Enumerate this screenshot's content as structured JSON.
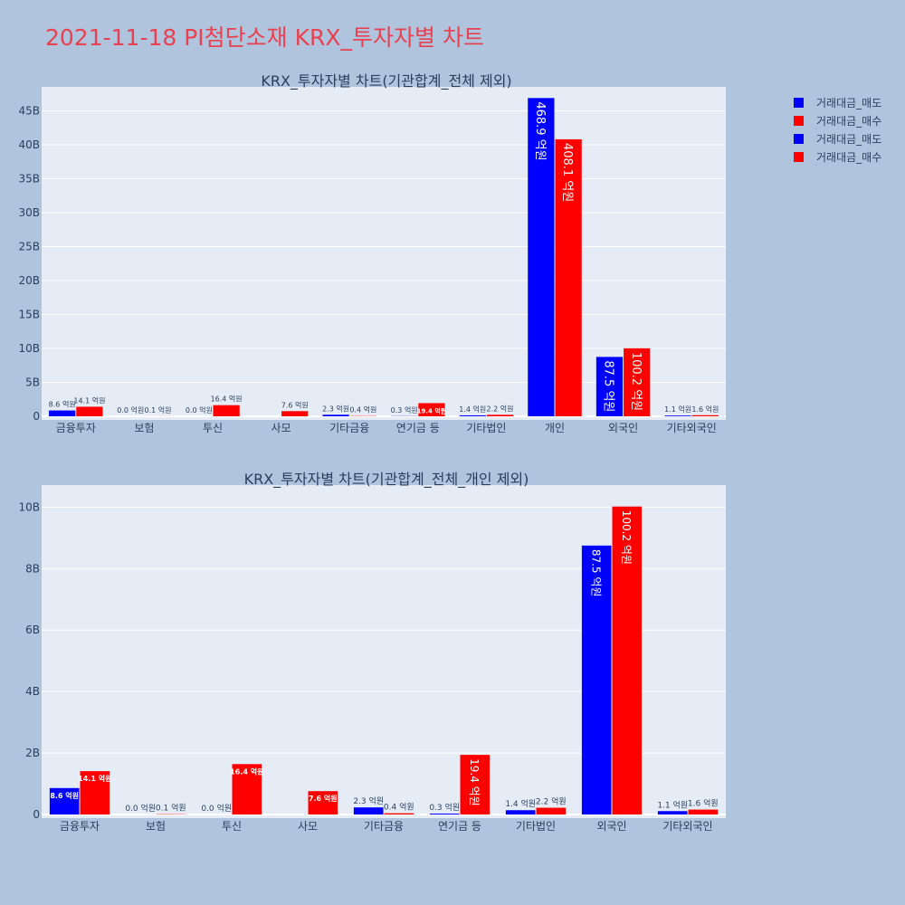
{
  "title": "2021-11-18 PI첨단소재 KRX_투자자별 차트",
  "colors": {
    "sell": "#0000ff",
    "buy": "#ff0000",
    "plot_bg": "#e5ecf6",
    "page_bg": "#b0c4de"
  },
  "legend": [
    "거래대금_매도",
    "거래대금_매수",
    "거래대금_매도",
    "거래대금_매수"
  ],
  "chart_data": [
    {
      "type": "bar",
      "title": "KRX_투자자별 차트(기관합계_전체 제외)",
      "categories": [
        "금융투자",
        "보험",
        "투신",
        "사모",
        "기타금융",
        "연기금 등",
        "기타법인",
        "개인",
        "외국인",
        "기타외국인"
      ],
      "ylim": [
        0,
        48
      ],
      "yticks": [
        0,
        5,
        10,
        15,
        20,
        25,
        30,
        35,
        40,
        45
      ],
      "ytick_labels": [
        "0",
        "5B",
        "10B",
        "15B",
        "20B",
        "25B",
        "30B",
        "35B",
        "40B",
        "45B"
      ],
      "series": [
        {
          "name": "거래대금_매도",
          "color": "#0000ff",
          "values": [
            0.86,
            0.0,
            0.0,
            null,
            0.23,
            0.03,
            0.14,
            46.89,
            8.75,
            0.11
          ],
          "labels": [
            "8.6 억원",
            "0.0 억원",
            "0.0 억원",
            "",
            "2.3 억원",
            "0.3 억원",
            "1.4 억원",
            "468.9 억원",
            "87.5 억원",
            "1.1 억원"
          ]
        },
        {
          "name": "거래대금_매수",
          "color": "#ff0000",
          "values": [
            1.41,
            0.01,
            1.64,
            0.76,
            0.04,
            1.94,
            0.22,
            40.81,
            10.02,
            0.16
          ],
          "labels": [
            "14.1 억원",
            "0.1 억원",
            "16.4 억원",
            "7.6 억원",
            "0.4 억원",
            "19.4 억원",
            "2.2 억원",
            "408.1 억원",
            "100.2 억원",
            "1.6 억원"
          ]
        }
      ]
    },
    {
      "type": "bar",
      "title": "KRX_투자자별 차트(기관합계_전체_개인 제외)",
      "categories": [
        "금융투자",
        "보험",
        "투신",
        "사모",
        "기타금융",
        "연기금 등",
        "기타법인",
        "외국인",
        "기타외국인"
      ],
      "ylim": [
        0,
        10.6
      ],
      "yticks": [
        0,
        2,
        4,
        6,
        8,
        10
      ],
      "ytick_labels": [
        "0",
        "2B",
        "4B",
        "6B",
        "8B",
        "10B"
      ],
      "series": [
        {
          "name": "거래대금_매도",
          "color": "#0000ff",
          "values": [
            0.86,
            0.0,
            0.0,
            null,
            0.23,
            0.03,
            0.14,
            8.75,
            0.11
          ],
          "labels": [
            "8.6 억원",
            "0.0 억원",
            "0.0 억원",
            "",
            "2.3 억원",
            "0.3 억원",
            "1.4 억원",
            "87.5 억원",
            "1.1 억원"
          ]
        },
        {
          "name": "거래대금_매수",
          "color": "#ff0000",
          "values": [
            1.41,
            0.01,
            1.64,
            0.76,
            0.04,
            1.94,
            0.22,
            10.02,
            0.16
          ],
          "labels": [
            "14.1 억원",
            "0.1 억원",
            "16.4 억원",
            "7.6 억원",
            "0.4 억원",
            "19.4 억원",
            "2.2 억원",
            "100.2 억원",
            "1.6 억원"
          ]
        }
      ]
    }
  ]
}
